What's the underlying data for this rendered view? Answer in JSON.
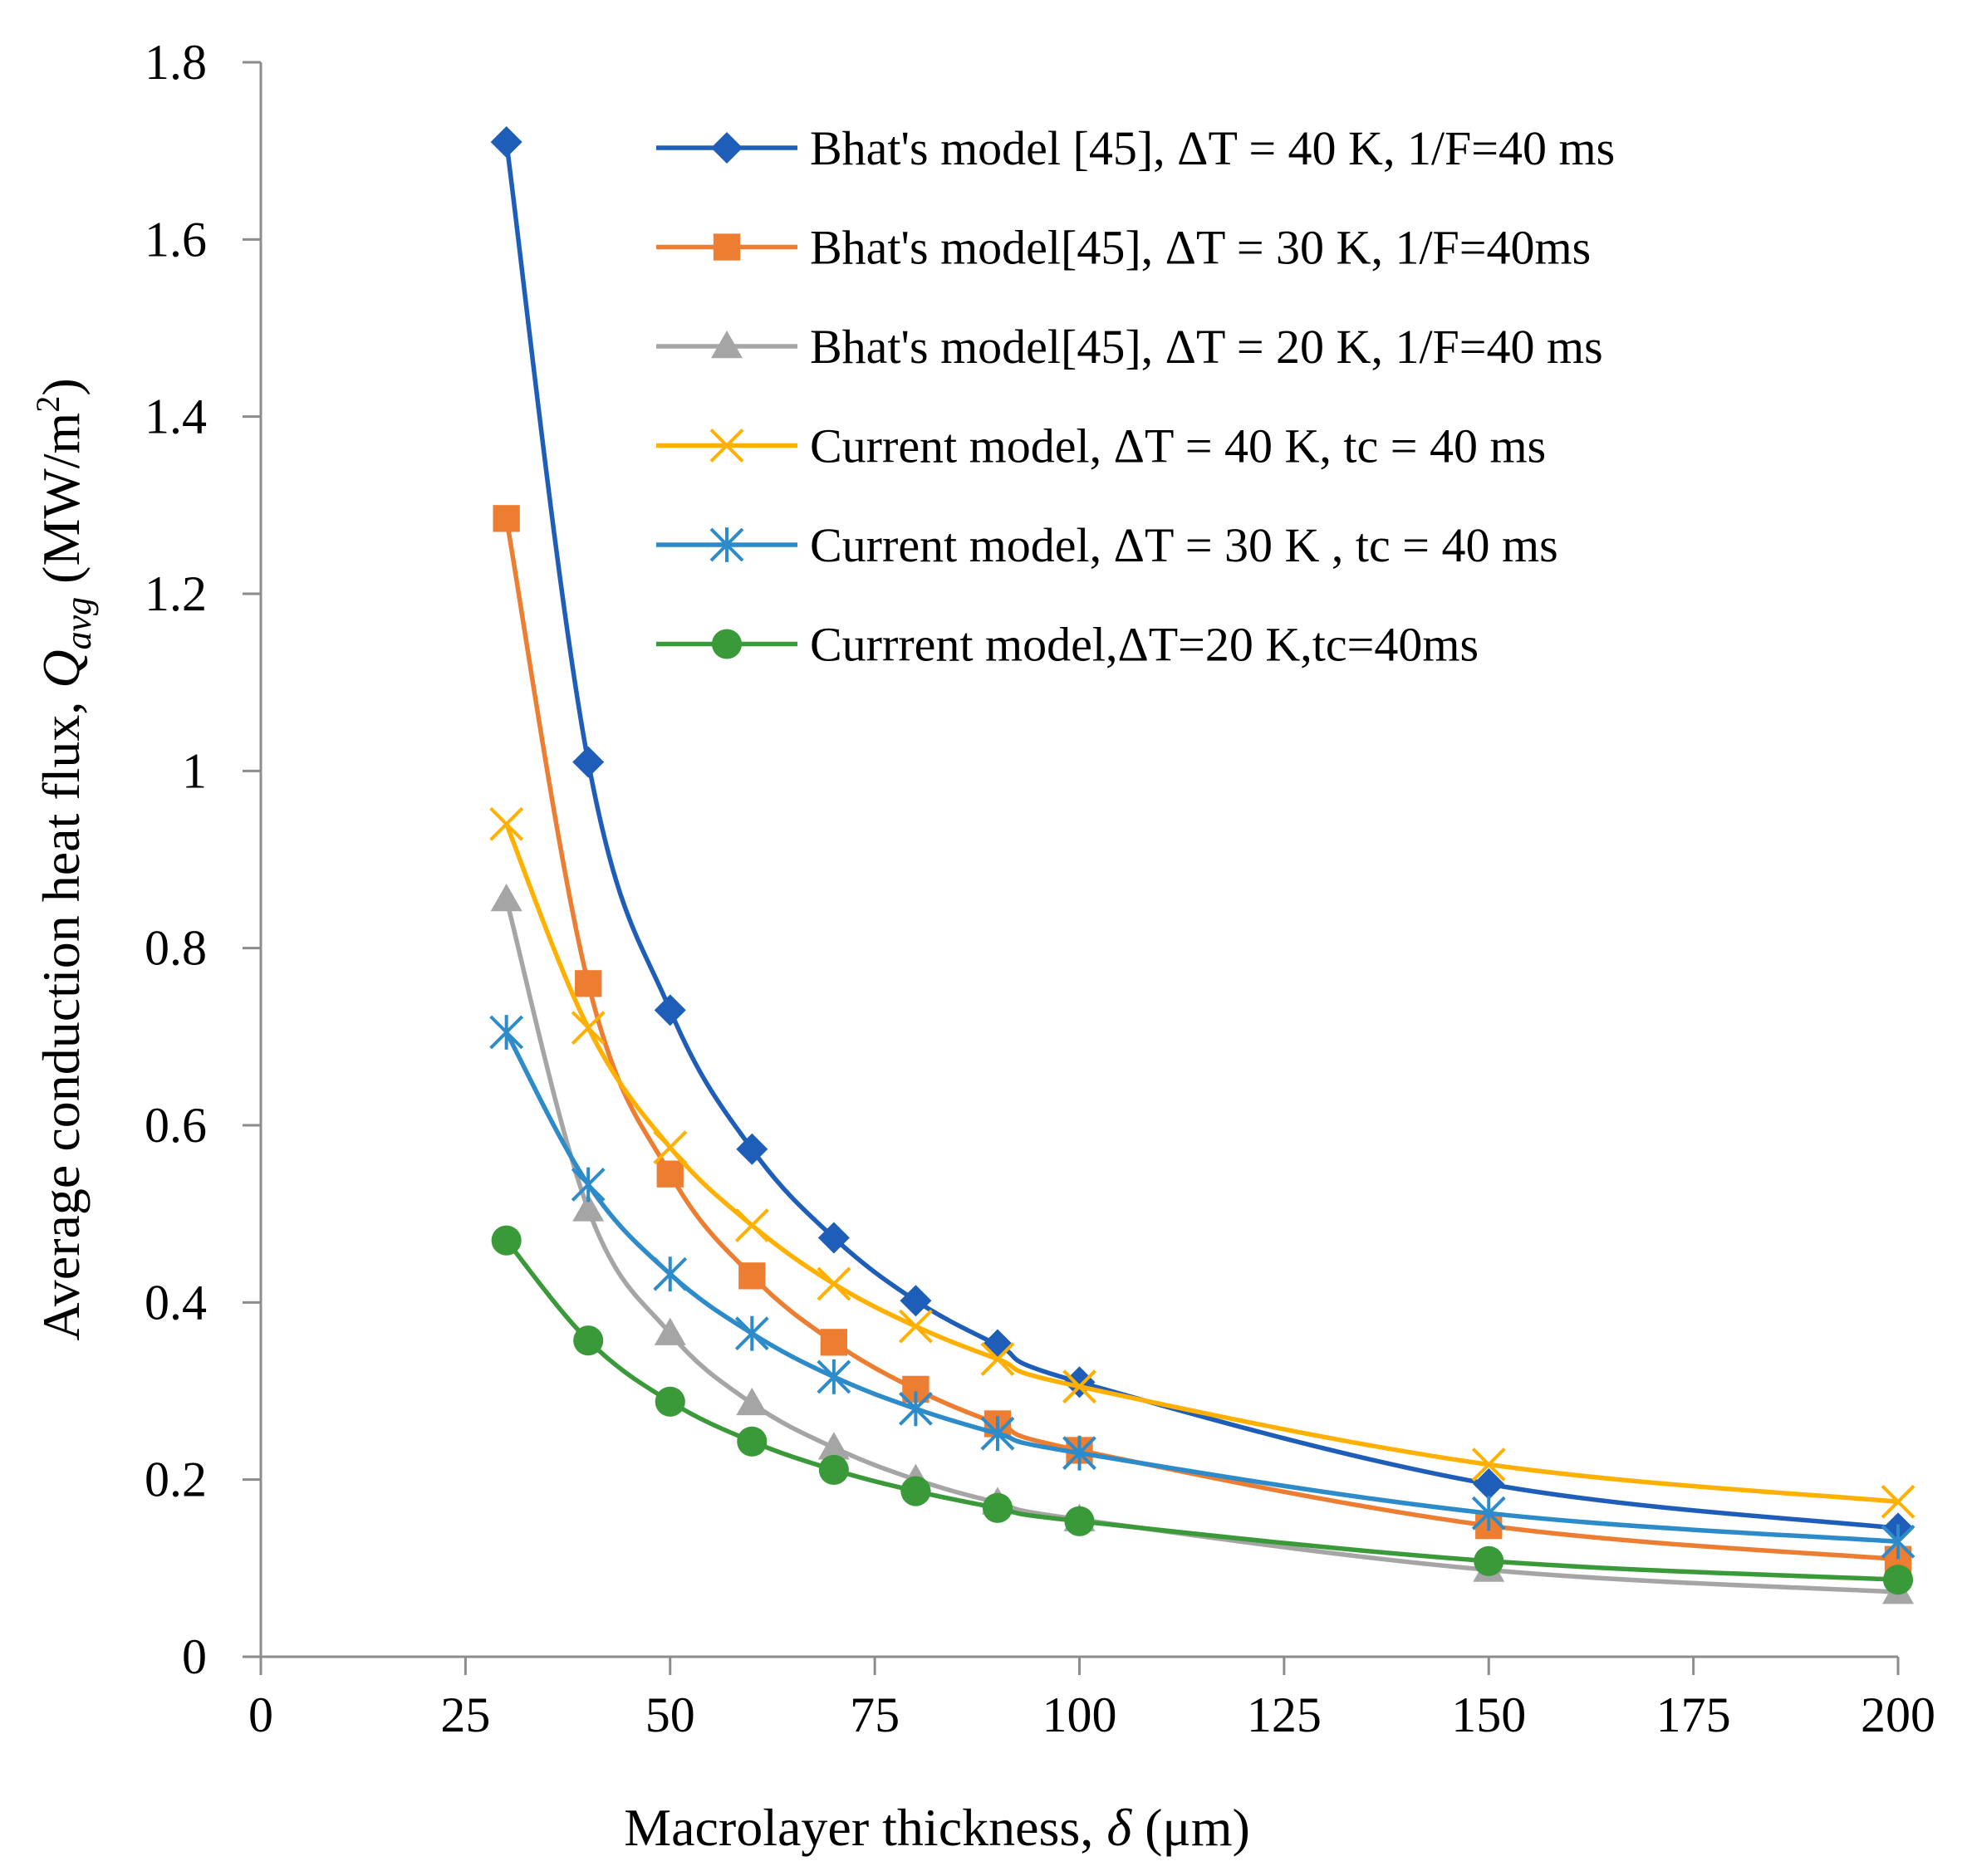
{
  "chart_data": {
    "type": "line",
    "title": "",
    "xlabel": {
      "prefix": "Macrolayer thickness, ",
      "symbol": "δ",
      "suffix": " (μm)"
    },
    "ylabel": {
      "prefix": "Average conduction heat flux, ",
      "symbol": "Q",
      "subscript": "avg",
      "unit_prefix": " (MW/m",
      "unit_sup": "2",
      "unit_suffix": ")"
    },
    "xlim": [
      0,
      200
    ],
    "ylim": [
      0,
      1.8
    ],
    "xticks": [
      "0",
      "25",
      "50",
      "75",
      "100",
      "125",
      "150",
      "175",
      "200"
    ],
    "yticks": [
      "0",
      "0.2",
      "0.4",
      "0.6",
      "0.8",
      "1",
      "1.2",
      "1.4",
      "1.6",
      "1.8"
    ],
    "grid": false,
    "legend_position": "top-right",
    "series": [
      {
        "name": "Bhat's model [45], ΔT = 40 K, 1/F=40 ms",
        "marker": "diamond",
        "color": "#1F5EB8",
        "x": [
          30,
          40,
          50,
          60,
          70,
          80,
          90,
          100,
          150,
          200
        ],
        "y": [
          1.71,
          1.01,
          0.73,
          0.573,
          0.473,
          0.402,
          0.352,
          0.31,
          0.195,
          0.145
        ]
      },
      {
        "name": "Bhat's model[45], ΔT = 30 K, 1/F=40ms",
        "marker": "square",
        "color": "#ED7D31",
        "x": [
          30,
          40,
          50,
          60,
          70,
          80,
          90,
          100,
          150,
          200
        ],
        "y": [
          1.285,
          0.76,
          0.545,
          0.43,
          0.355,
          0.302,
          0.263,
          0.233,
          0.148,
          0.11
        ]
      },
      {
        "name": "Bhat's model[45], ΔT = 20 K, 1/F=40 ms",
        "marker": "triangle",
        "color": "#A5A5A5",
        "x": [
          30,
          40,
          50,
          60,
          70,
          80,
          90,
          100,
          150,
          200
        ],
        "y": [
          0.855,
          0.505,
          0.365,
          0.286,
          0.236,
          0.2,
          0.174,
          0.155,
          0.098,
          0.073
        ]
      },
      {
        "name": "Current model, ΔT = 40 K, tc = 40 ms",
        "marker": "x",
        "color": "#FFB000",
        "x": [
          30,
          40,
          50,
          60,
          70,
          80,
          90,
          100,
          150,
          200
        ],
        "y": [
          0.94,
          0.71,
          0.575,
          0.487,
          0.421,
          0.373,
          0.336,
          0.305,
          0.217,
          0.175
        ]
      },
      {
        "name": "Current model, ΔT = 30 K , tc = 40 ms",
        "marker": "asterisk",
        "color": "#2E8BC9",
        "x": [
          30,
          40,
          50,
          60,
          70,
          80,
          90,
          100,
          150,
          200
        ],
        "y": [
          0.705,
          0.533,
          0.432,
          0.365,
          0.316,
          0.28,
          0.252,
          0.23,
          0.162,
          0.13
        ]
      },
      {
        "name": "Currrent model,ΔT=20 K,tc=40ms",
        "marker": "circle",
        "color": "#3A9A3A",
        "x": [
          30,
          40,
          50,
          60,
          70,
          80,
          90,
          100,
          150,
          200
        ],
        "y": [
          0.47,
          0.357,
          0.288,
          0.243,
          0.211,
          0.187,
          0.168,
          0.153,
          0.108,
          0.087
        ]
      }
    ]
  }
}
